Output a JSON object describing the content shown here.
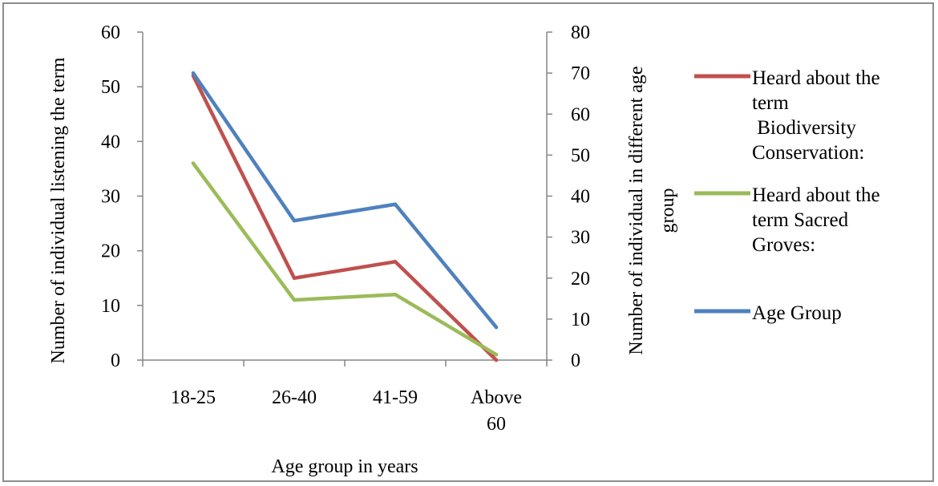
{
  "chart_data": {
    "type": "line",
    "categories": [
      "18-25",
      "26-40",
      "41-59",
      "Above 60"
    ],
    "category_labels": [
      [
        "18-25"
      ],
      [
        "26-40"
      ],
      [
        "41-59"
      ],
      [
        "Above",
        "60"
      ]
    ],
    "xlabel": "Age group in years",
    "ylabel_left": "Number of individual listening the term",
    "ylabel_right_lines": [
      "Number of individual in different age",
      "group"
    ],
    "ylim_left": [
      0,
      60
    ],
    "yticks_left": [
      0,
      10,
      20,
      30,
      40,
      50,
      60
    ],
    "ylim_right": [
      0,
      80
    ],
    "yticks_right": [
      0,
      10,
      20,
      30,
      40,
      50,
      60,
      70,
      80
    ],
    "grid": false,
    "legend_position": "right",
    "series": [
      {
        "name_lines": [
          "Heard about the",
          "term",
          " Biodiversity",
          "Conservation:"
        ],
        "axis": "left",
        "color": "#c0504d",
        "values": [
          52,
          15,
          18,
          0
        ]
      },
      {
        "name_lines": [
          "Heard about the",
          "term Sacred",
          "Groves:"
        ],
        "axis": "left",
        "color": "#9bbb59",
        "values": [
          36,
          11,
          12,
          1
        ]
      },
      {
        "name_lines": [
          "Age Group"
        ],
        "axis": "right",
        "color": "#4f81bd",
        "values": [
          70,
          34,
          38,
          8
        ]
      }
    ]
  }
}
